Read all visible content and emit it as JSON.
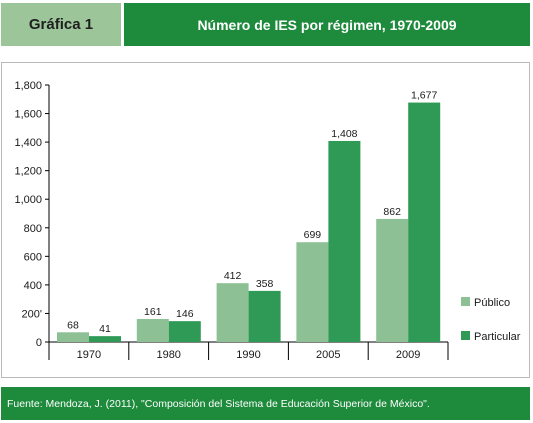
{
  "header": {
    "label": "Gráfica 1",
    "title": "Número de IES por régimen, 1970-2009"
  },
  "footer": {
    "source": "Fuente: Mendoza, J. (2011), \"Composición del Sistema de Educación Superior de México\"."
  },
  "colors": {
    "header_left": "#9cc59a",
    "header_right": "#1d8a3c",
    "publico": "#8dc195",
    "particular": "#2e9a55"
  },
  "chart_data": {
    "type": "bar",
    "categories": [
      "1970",
      "1980",
      "1990",
      "2005",
      "2009"
    ],
    "series": [
      {
        "name": "Público",
        "values": [
          68,
          161,
          412,
          699,
          862
        ],
        "labels": [
          "68",
          "161",
          "412",
          "699",
          "862"
        ]
      },
      {
        "name": "Particular",
        "values": [
          41,
          146,
          358,
          1408,
          1677
        ],
        "labels": [
          "41",
          "146",
          "358",
          "1,408",
          "1,677"
        ]
      }
    ],
    "yticks": [
      "0",
      "200'",
      "400",
      "600",
      "800",
      "1,000",
      "1,200",
      "1,400",
      "1,600",
      "1,800"
    ],
    "ylim": [
      0,
      1800
    ],
    "grid": false,
    "legend": "right"
  }
}
